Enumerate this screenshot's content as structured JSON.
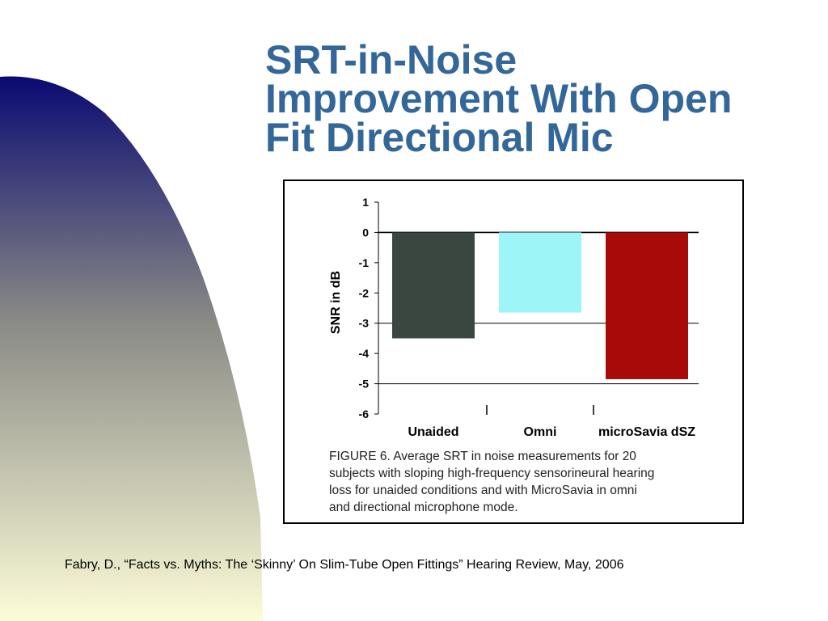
{
  "slide": {
    "title_lines": [
      "SRT-in-Noise",
      "Improvement With Open",
      "Fit Directional Mic"
    ],
    "citation": "Fabry, D., “Facts vs. Myths: The ‘Skinny’ On Slim-Tube Open Fittings” Hearing Review, May, 2006"
  },
  "colors": {
    "title": "#336699",
    "curve_top": "#0a0a72",
    "curve_mid": "#8a8a86",
    "curve_bottom": "#fcfcd8"
  },
  "figure": {
    "caption_lines": [
      "FIGURE 6. Average SRT in noise measurements for 20",
      "subjects with sloping high-frequency sensorineural hearing",
      "loss for unaided conditions and with MicroSavia in omni",
      "and directional microphone mode."
    ]
  },
  "chart_data": {
    "type": "bar",
    "categories": [
      "Unaided",
      "Omni",
      "microSavia dSZ"
    ],
    "values": [
      -3.5,
      -2.65,
      -4.85
    ],
    "bar_colors": [
      "#3a4640",
      "#9ef5f7",
      "#a80a0a"
    ],
    "title": "",
    "xlabel": "",
    "ylabel": "SNR in dB",
    "ylim": [
      -6,
      1
    ],
    "yticks": [
      1,
      0,
      -1,
      -2,
      -3,
      -4,
      -5,
      -6
    ],
    "grid_lines": [
      0,
      -3,
      -5
    ]
  }
}
